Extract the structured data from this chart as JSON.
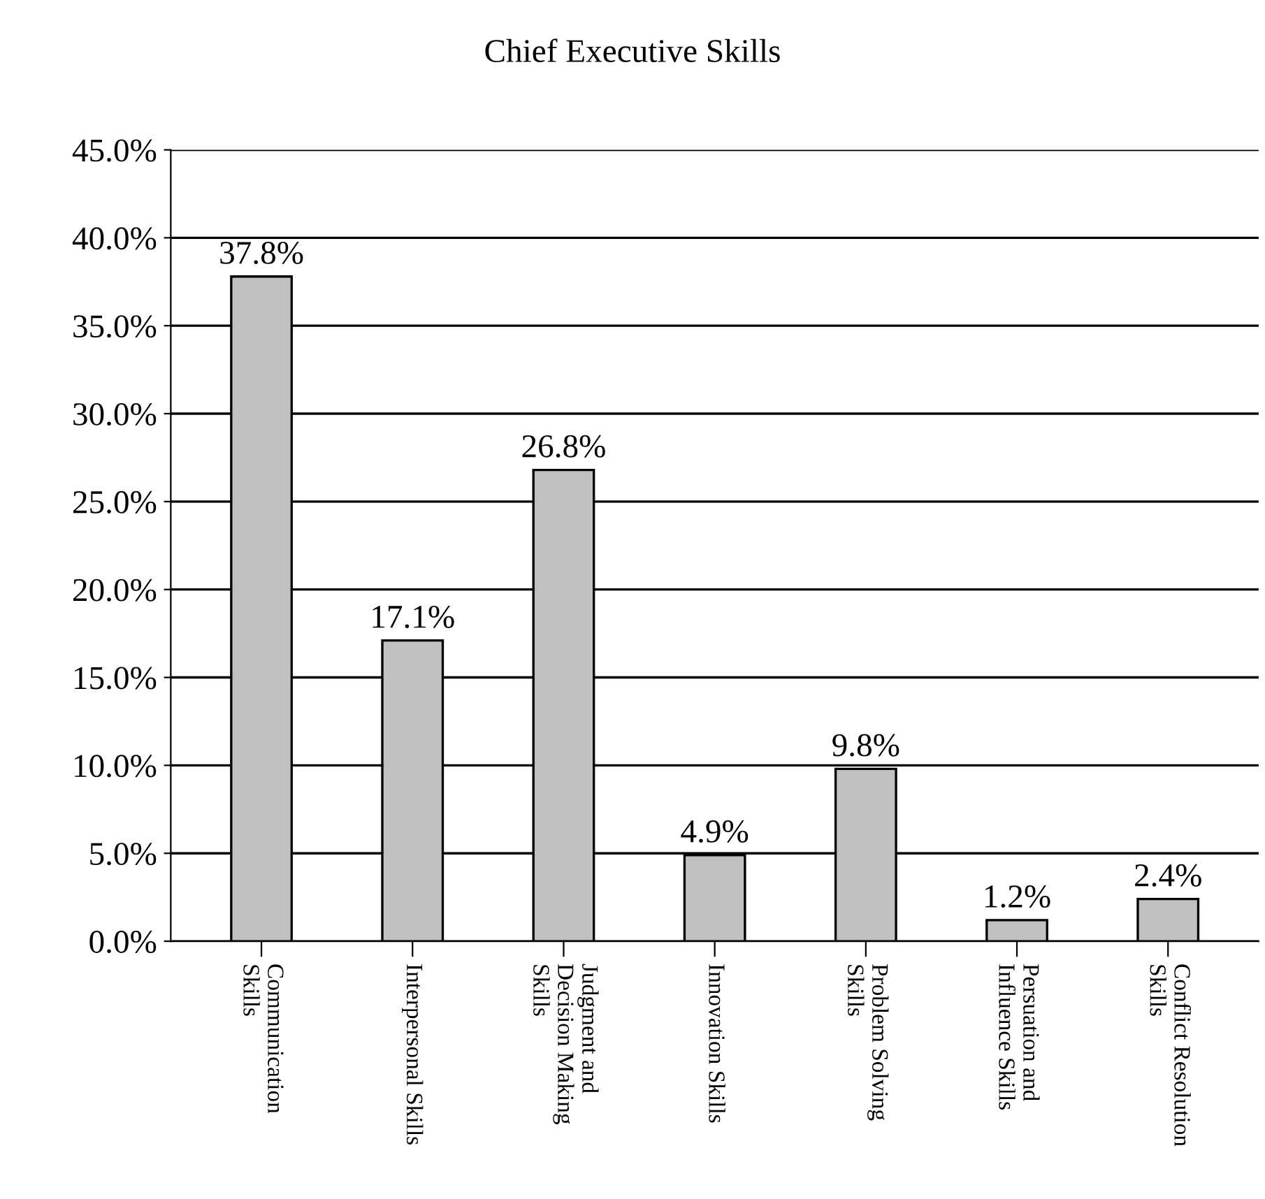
{
  "chart_data": {
    "type": "bar",
    "title": "Chief Executive Skills",
    "categories": [
      "Communication\nSkills",
      "Interpersonal Skills",
      "Judgment and\nDecision Making\nSkills",
      "Innovation Skills",
      "Problem Solving\nSkills",
      "Persuation and\nInfluence Skills",
      "Conflict Resolution\nSkills"
    ],
    "values": [
      37.8,
      17.1,
      26.8,
      4.9,
      9.8,
      1.2,
      2.4
    ],
    "value_labels": [
      "37.8%",
      "17.1%",
      "26.8%",
      "4.9%",
      "9.8%",
      "1.2%",
      "2.4%"
    ],
    "color": "#c0c0c0",
    "ylim": [
      0,
      45
    ],
    "yticks": [
      {
        "value": 0,
        "label": "0.0%"
      },
      {
        "value": 5,
        "label": "5.0%"
      },
      {
        "value": 10,
        "label": "10.0%"
      },
      {
        "value": 15,
        "label": "15.0%"
      },
      {
        "value": 20,
        "label": "20.0%"
      },
      {
        "value": 25,
        "label": "25.0%"
      },
      {
        "value": 30,
        "label": "30.0%"
      },
      {
        "value": 35,
        "label": "35.0%"
      },
      {
        "value": 40,
        "label": "40.0%"
      },
      {
        "value": 45,
        "label": "45.0%"
      }
    ],
    "grid": "y",
    "legend": false
  }
}
